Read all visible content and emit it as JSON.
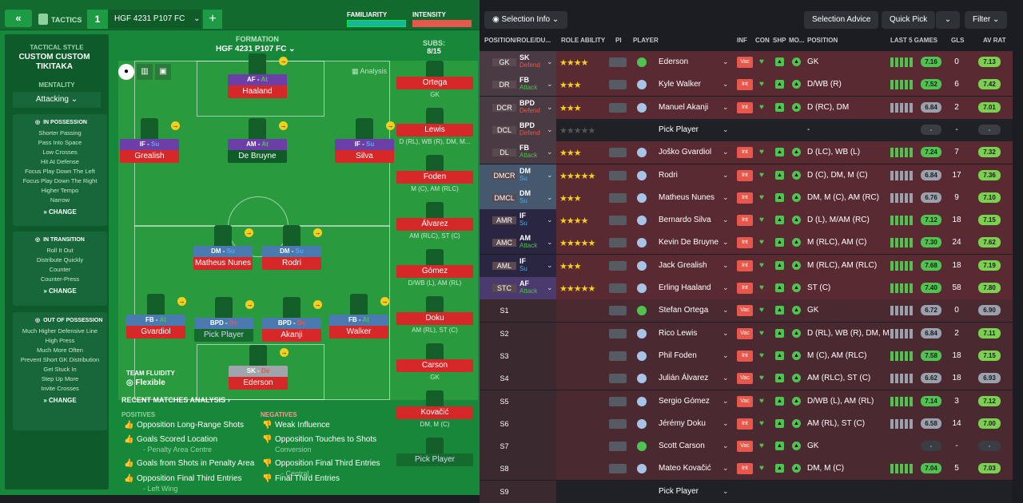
{
  "topbar": {
    "tactics": "TACTICS",
    "number": "1",
    "tactic_name": "HGF  4231 P107 FC",
    "familiarity": "FAMILIARITY",
    "intensity": "INTENSITY"
  },
  "sidebar": {
    "style_caption": "TACTICAL STYLE",
    "style": "CUSTOM CUSTOM TIKITAKA",
    "mentality_caption": "MENTALITY",
    "mentality": "Attacking",
    "possession": {
      "title": "IN POSSESSION",
      "items": [
        "Shorter Passing",
        "Pass Into Space",
        "Low Crosses",
        "Hit At Defense",
        "Focus Play Down The Left",
        "Focus Play Down The Right",
        "Higher Tempo",
        "Narrow"
      ],
      "change": "CHANGE"
    },
    "transition": {
      "title": "IN TRANSITION",
      "items": [
        "Roll It Out",
        "Distribute Quickly",
        "Counter",
        "Counter-Press"
      ],
      "change": "CHANGE"
    },
    "oop": {
      "title": "OUT OF POSSESSION",
      "items": [
        "Much Higher Defensive Line",
        "High Press",
        "Much More Often",
        "Prevent Short GK Distribution",
        "Get Stuck In",
        "Step Up More",
        "Invite Crosses"
      ],
      "change": "CHANGE"
    }
  },
  "formation": {
    "caption": "FORMATION",
    "name": "HGF  4231 P107 FC",
    "analysis": "Analysis",
    "fluidity_caption": "TEAM FLUIDITY",
    "fluidity": "Flexible"
  },
  "pitch_players": [
    {
      "pos": "AF - At",
      "name": "Haaland"
    },
    {
      "pos": "IF - Su",
      "name": "Grealish"
    },
    {
      "pos": "AM - At",
      "name": "De Bruyne"
    },
    {
      "pos": "IF - Su",
      "name": "Silva"
    },
    {
      "pos": "DM - Su",
      "name": "Matheus Nunes"
    },
    {
      "pos": "DM - Su",
      "name": "Rodri"
    },
    {
      "pos": "FB - At",
      "name": "Gvardiol"
    },
    {
      "pos": "BPD - De",
      "name": "Pick Player"
    },
    {
      "pos": "BPD - De",
      "name": "Akanji"
    },
    {
      "pos": "FB - At",
      "name": "Walker"
    },
    {
      "pos": "SK - De",
      "name": "Ederson"
    }
  ],
  "subs": {
    "caption": "SUBS:",
    "count": "8/15",
    "list": [
      {
        "name": "Ortega",
        "pos": "GK"
      },
      {
        "name": "Lewis",
        "pos": "D (RL), WB (R), DM, M..."
      },
      {
        "name": "Foden",
        "pos": "M (C), AM (RLC)"
      },
      {
        "name": "Álvarez",
        "pos": "AM (RLC), ST (C)"
      },
      {
        "name": "Gómez",
        "pos": "D/WB (L), AM (RL)"
      },
      {
        "name": "Doku",
        "pos": "AM (RL), ST (C)"
      },
      {
        "name": "Carson",
        "pos": "GK"
      },
      {
        "name": "Kovačić",
        "pos": "DM, M (C)"
      },
      {
        "name": "Pick Player",
        "pos": ""
      }
    ]
  },
  "analysis": {
    "title": "RECENT MATCHES ANALYSIS",
    "positives_caption": "POSITIVES",
    "negatives_caption": "NEGATIVES",
    "positives": [
      {
        "text": "Opposition Long-Range Shots",
        "sub": ""
      },
      {
        "text": "Goals Scored Location",
        "sub": "- Penalty Area Centre"
      },
      {
        "text": "Goals from Shots in Penalty Area",
        "sub": ""
      },
      {
        "text": "Opposition Final Third Entries",
        "sub": "- Left Wing"
      }
    ],
    "negatives": [
      {
        "text": "Weak Influence",
        "sub": ""
      },
      {
        "text": "Opposition Touches to Shots",
        "sub": "Conversion"
      },
      {
        "text": "Opposition Final Third Entries",
        "sub": "- Central"
      },
      {
        "text": "Final Third Entries",
        "sub": ""
      }
    ]
  },
  "right": {
    "selection_info": "Selection Info",
    "selection_advice": "Selection Advice",
    "quick_pick": "Quick Pick",
    "filter": "Filter",
    "headers": {
      "pos": "POSITION/ROLE/DU...",
      "ability": "ROLE ABILITY",
      "pi": "PI",
      "player": "PLAYER",
      "inf": "INF",
      "con": "CON",
      "shp": "SHP",
      "mo": "MO...",
      "position": "POSITION",
      "last5": "LAST 5 GAMES",
      "gls": "GLS",
      "avrat": "AV RAT"
    },
    "rows": [
      {
        "pos": "GK",
        "role": "SK",
        "duty": "Defend",
        "stars": "★★★★",
        "player": "Ederson",
        "inf": "Vac",
        "position": "GK",
        "l5": "7.16",
        "gls": "0",
        "av": "7.13",
        "rowbg": "#5a2a33",
        "l5c": "#4fc24f",
        "avc": "#7bd14f",
        "dutycol": "#e8574b"
      },
      {
        "pos": "DR",
        "role": "FB",
        "duty": "Attack",
        "stars": "★★★",
        "player": "Kyle Walker",
        "inf": "Int",
        "position": "D/WB (R)",
        "l5": "7.52",
        "gls": "6",
        "av": "7.42",
        "rowbg": "#5a2a33",
        "l5c": "#4fc24f",
        "avc": "#7bd14f",
        "dutycol": "#4fc24f"
      },
      {
        "pos": "DCR",
        "role": "BPD",
        "duty": "Defend",
        "stars": "★★★",
        "player": "Manuel Akanji",
        "inf": "Int",
        "position": "D (RC), DM",
        "l5": "6.84",
        "gls": "2",
        "av": "7.01",
        "rowbg": "#5a2a33",
        "l5c": "#9aa1ad",
        "avc": "#7bd14f",
        "dutycol": "#e8574b"
      },
      {
        "pos": "DCL",
        "role": "BPD",
        "duty": "Defend",
        "stars": "★★★★★",
        "player": "Pick Player",
        "inf": "",
        "position": "-",
        "l5": "-",
        "gls": "-",
        "av": "-",
        "rowbg": "#1f2126",
        "l5c": "#3a3d44",
        "avc": "#3a3d44",
        "dutycol": "#e8574b"
      },
      {
        "pos": "DL",
        "role": "FB",
        "duty": "Attack",
        "stars": "★★★",
        "player": "Joško Gvardiol",
        "inf": "Int",
        "position": "D (LC), WB (L)",
        "l5": "7.24",
        "gls": "7",
        "av": "7.32",
        "rowbg": "#5a2a33",
        "l5c": "#4fc24f",
        "avc": "#7bd14f",
        "dutycol": "#4fc24f"
      },
      {
        "pos": "DMCR",
        "role": "DM",
        "duty": "Su",
        "stars": "★★★★★",
        "player": "Rodri",
        "inf": "Int",
        "position": "D (C), DM, M (C)",
        "l5": "6.84",
        "gls": "17",
        "av": "7.36",
        "rowbg": "#5a2a33",
        "l5c": "#9aa1ad",
        "avc": "#7bd14f",
        "dutycol": "#5aa8e6"
      },
      {
        "pos": "DMCL",
        "role": "DM",
        "duty": "Su",
        "stars": "★★★",
        "player": "Matheus Nunes",
        "inf": "Int",
        "position": "DM, M (C), AM (RC)",
        "l5": "6.76",
        "gls": "9",
        "av": "7.10",
        "rowbg": "#5a2a33",
        "l5c": "#9aa1ad",
        "avc": "#7bd14f",
        "dutycol": "#5aa8e6"
      },
      {
        "pos": "AMR",
        "role": "IF",
        "duty": "Su",
        "stars": "★★★★",
        "player": "Bernardo Silva",
        "inf": "Int",
        "position": "D (L), M/AM (RC)",
        "l5": "7.12",
        "gls": "18",
        "av": "7.15",
        "rowbg": "#5a2a33",
        "l5c": "#4fc24f",
        "avc": "#7bd14f",
        "dutycol": "#5aa8e6"
      },
      {
        "pos": "AMC",
        "role": "AM",
        "duty": "Attack",
        "stars": "★★★★★",
        "player": "Kevin De Bruyne",
        "inf": "Int",
        "position": "M (RLC), AM (C)",
        "l5": "7.30",
        "gls": "24",
        "av": "7.62",
        "rowbg": "#5a2a33",
        "l5c": "#4fc24f",
        "avc": "#7bd14f",
        "dutycol": "#4fc24f"
      },
      {
        "pos": "AML",
        "role": "IF",
        "duty": "Su",
        "stars": "★★★",
        "player": "Jack Grealish",
        "inf": "Int",
        "position": "M (RLC), AM (RLC)",
        "l5": "7.68",
        "gls": "18",
        "av": "7.19",
        "rowbg": "#5a2a33",
        "l5c": "#4fc24f",
        "avc": "#7bd14f",
        "dutycol": "#5aa8e6"
      },
      {
        "pos": "STC",
        "role": "AF",
        "duty": "Attack",
        "stars": "★★★★★",
        "player": "Erling Haaland",
        "inf": "Int",
        "position": "ST (C)",
        "l5": "7.40",
        "gls": "58",
        "av": "7.80",
        "rowbg": "#5a2a33",
        "l5c": "#4fc24f",
        "avc": "#7bd14f",
        "dutycol": "#4fc24f"
      },
      {
        "pos": "S1",
        "role": "",
        "duty": "",
        "stars": "",
        "player": "Stefan Ortega",
        "inf": "Vac",
        "position": "GK",
        "l5": "6.72",
        "gls": "0",
        "av": "6.90",
        "rowbg": "#4a2a30",
        "l5c": "#9aa1ad",
        "avc": "#9aa1ad",
        "dutycol": "#fff"
      },
      {
        "pos": "S2",
        "role": "",
        "duty": "",
        "stars": "",
        "player": "Rico Lewis",
        "inf": "Vac",
        "position": "D (RL), WB (R), DM, M...",
        "l5": "6.84",
        "gls": "2",
        "av": "7.11",
        "rowbg": "#4a2a30",
        "l5c": "#9aa1ad",
        "avc": "#7bd14f",
        "dutycol": "#fff"
      },
      {
        "pos": "S3",
        "role": "",
        "duty": "",
        "stars": "",
        "player": "Phil Foden",
        "inf": "Int",
        "position": "M (C), AM (RLC)",
        "l5": "7.58",
        "gls": "18",
        "av": "7.15",
        "rowbg": "#4a2a30",
        "l5c": "#4fc24f",
        "avc": "#7bd14f",
        "dutycol": "#fff"
      },
      {
        "pos": "S4",
        "role": "",
        "duty": "",
        "stars": "",
        "player": "Julián Álvarez",
        "inf": "Vac",
        "position": "AM (RLC), ST (C)",
        "l5": "6.62",
        "gls": "18",
        "av": "6.93",
        "rowbg": "#4a2a30",
        "l5c": "#9aa1ad",
        "avc": "#9aa1ad",
        "dutycol": "#fff"
      },
      {
        "pos": "S5",
        "role": "",
        "duty": "",
        "stars": "",
        "player": "Sergio Gómez",
        "inf": "Vac",
        "position": "D/WB (L), AM (RL)",
        "l5": "7.14",
        "gls": "3",
        "av": "7.12",
        "rowbg": "#4a2a30",
        "l5c": "#4fc24f",
        "avc": "#7bd14f",
        "dutycol": "#fff"
      },
      {
        "pos": "S6",
        "role": "",
        "duty": "",
        "stars": "",
        "player": "Jérémy Doku",
        "inf": "Int",
        "position": "AM (RL), ST (C)",
        "l5": "6.58",
        "gls": "14",
        "av": "7.00",
        "rowbg": "#4a2a30",
        "l5c": "#9aa1ad",
        "avc": "#7bd14f",
        "dutycol": "#fff"
      },
      {
        "pos": "S7",
        "role": "",
        "duty": "",
        "stars": "",
        "player": "Scott Carson",
        "inf": "Vac",
        "position": "GK",
        "l5": "-",
        "gls": "-",
        "av": "-",
        "rowbg": "#4a2a30",
        "l5c": "#3a3d44",
        "avc": "#3a3d44",
        "dutycol": "#fff"
      },
      {
        "pos": "S8",
        "role": "",
        "duty": "",
        "stars": "",
        "player": "Mateo Kovačić",
        "inf": "Int",
        "position": "DM, M (C)",
        "l5": "7.04",
        "gls": "5",
        "av": "7.03",
        "rowbg": "#4a2a30",
        "l5c": "#4fc24f",
        "avc": "#7bd14f",
        "dutycol": "#fff"
      },
      {
        "pos": "S9",
        "role": "",
        "duty": "",
        "stars": "",
        "player": "Pick Player",
        "inf": "",
        "position": "",
        "l5": "",
        "gls": "",
        "av": "",
        "rowbg": "#1f2126",
        "l5c": "#3a3d44",
        "avc": "#3a3d44",
        "dutycol": "#fff"
      }
    ]
  }
}
